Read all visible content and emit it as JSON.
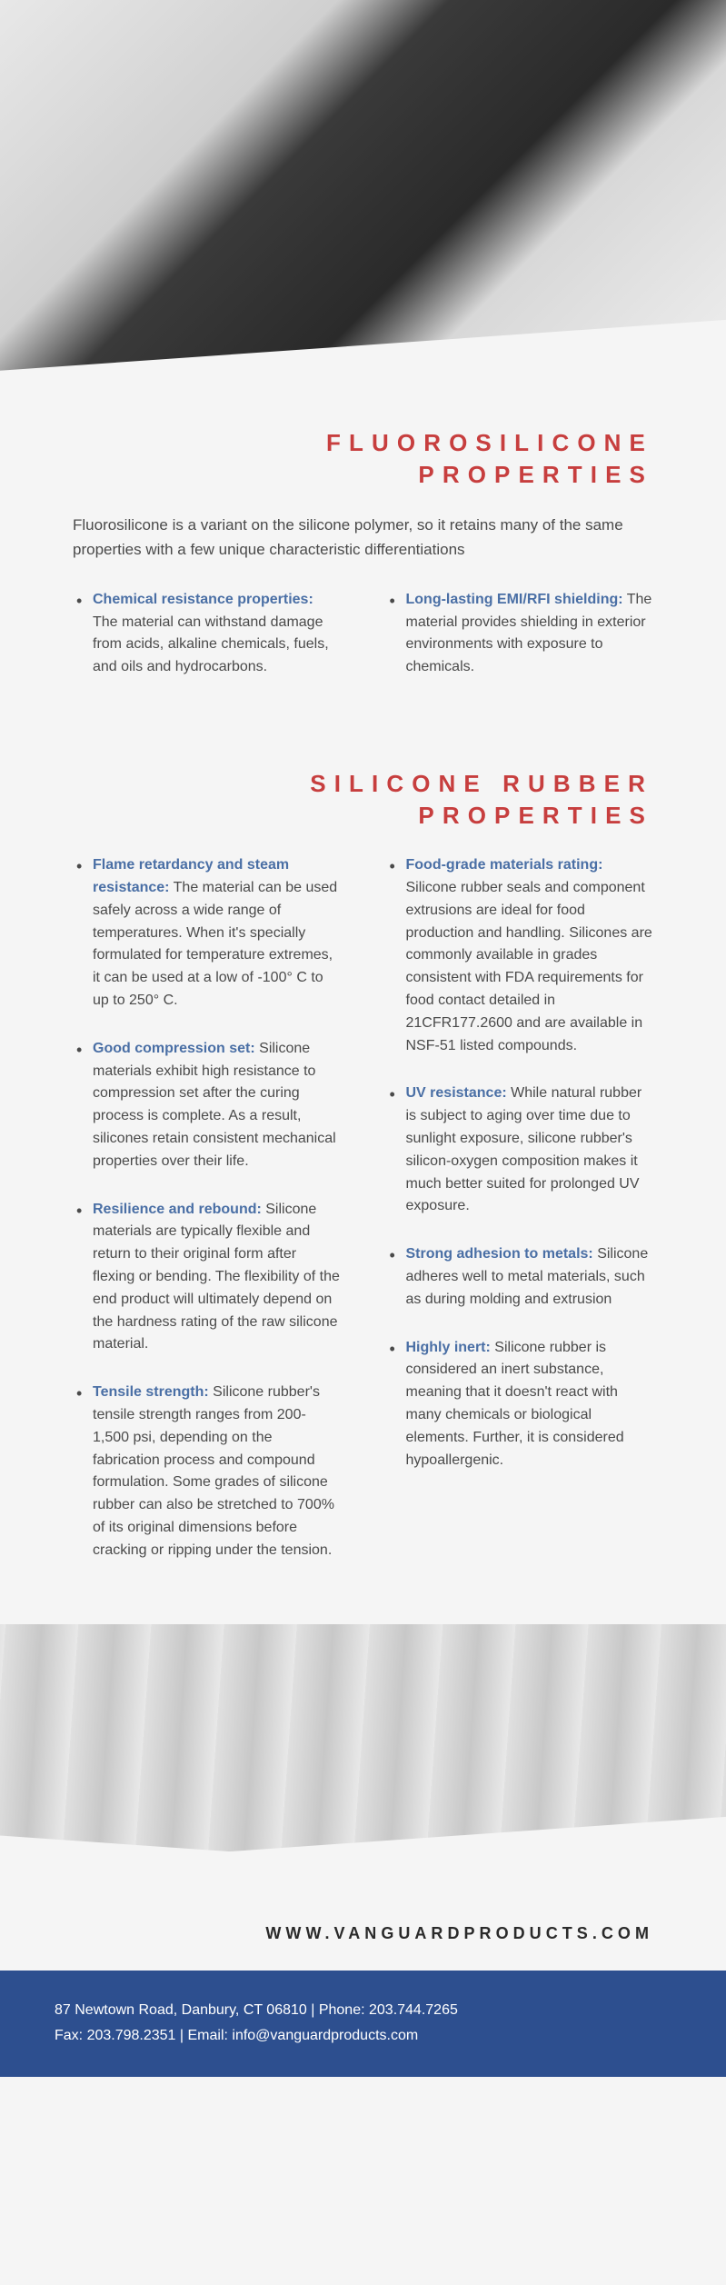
{
  "colors": {
    "heading": "#c73e3e",
    "label": "#4a6fa5",
    "body": "#4a4a4a",
    "footer_bg": "#2d4f8f",
    "page_bg": "#f5f5f5"
  },
  "section1": {
    "title_line1": "FLUOROSILICONE",
    "title_line2": "PROPERTIES",
    "intro": "Fluorosilicone is a variant on the silicone polymer, so it retains many of the same properties with a few unique characteristic differentiations",
    "left": [
      {
        "label": "Chemical resistance properties:",
        "body": " The material can withstand damage from acids, alkaline chemicals, fuels, and oils and hydrocarbons."
      }
    ],
    "right": [
      {
        "label": "Long-lasting EMI/RFI shielding:",
        "body": " The material provides shielding in exterior environments with exposure to chemicals."
      }
    ]
  },
  "section2": {
    "title_line1": "SILICONE RUBBER",
    "title_line2": "PROPERTIES",
    "left": [
      {
        "label": "Flame retardancy and steam resistance:",
        "body": " The material can be used safely across a wide range of temperatures. When it's specially formulated for temperature extremes, it can be used at a low of -100° C to up to 250° C."
      },
      {
        "label": "Good compression set:",
        "body": " Silicone materials exhibit high resistance to compression set after the curing process is complete. As a result, silicones retain consistent mechanical properties over their life."
      },
      {
        "label": "Resilience and rebound:",
        "body": " Silicone materials are typically flexible and return to their original form after flexing or bending. The flexibility of the end product will ultimately depend on the hardness rating of the raw silicone material."
      },
      {
        "label": "Tensile strength:",
        "body": " Silicone rubber's tensile strength ranges from 200-1,500 psi, depending on the fabrication process and compound formulation. Some grades of silicone rubber can also be stretched to 700% of its original dimensions before cracking or ripping under the tension."
      }
    ],
    "right": [
      {
        "label": "Food-grade materials rating:",
        "body": " Silicone rubber seals and component extrusions are ideal for food production and handling. Silicones are commonly available in grades consistent with FDA requirements for food contact detailed in 21CFR177.2600 and are available in NSF-51 listed compounds."
      },
      {
        "label": "UV resistance:",
        "body": " While natural rubber is subject to aging over time due to sunlight exposure, silicone rubber's silicon-oxygen composition makes it much better suited for prolonged UV exposure."
      },
      {
        "label": "Strong adhesion to metals:",
        "body": " Silicone adheres well to metal materials, such as during molding and extrusion"
      },
      {
        "label": "Highly inert:",
        "body": " Silicone rubber is considered an inert substance, meaning that it doesn't react with many chemicals or biological elements. Further, it is considered hypoallergenic."
      }
    ]
  },
  "footer": {
    "website": "WWW.VANGUARDPRODUCTS.COM",
    "line1": "87 Newtown Road, Danbury, CT 06810   |   Phone: 203.744.7265",
    "line2": "Fax: 203.798.2351   |   Email: info@vanguardproducts.com"
  }
}
